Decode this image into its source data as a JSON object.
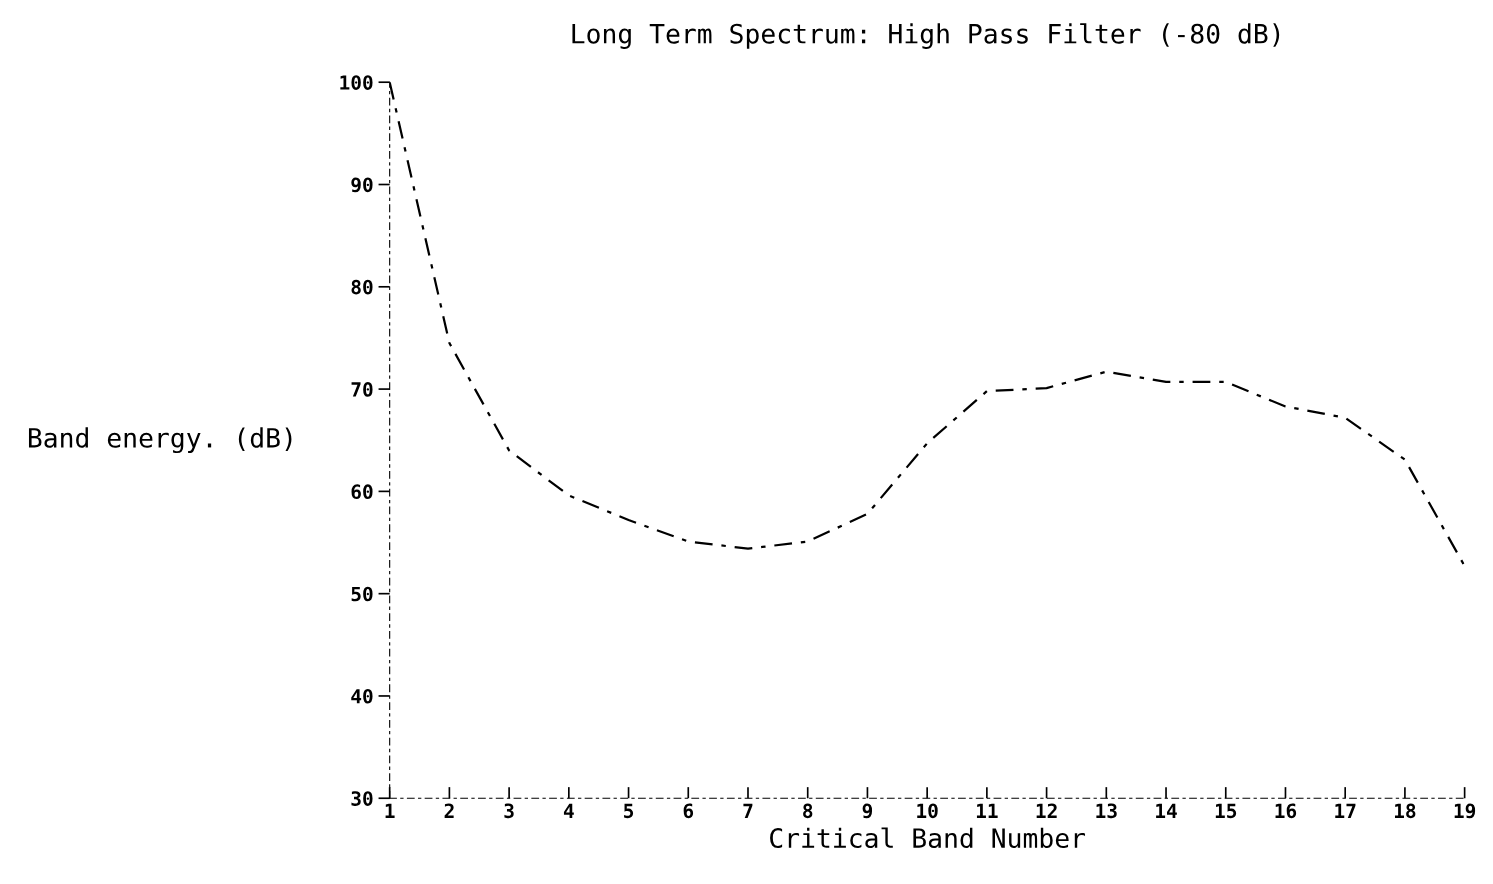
{
  "chart_data": {
    "type": "line",
    "title": "Long Term Spectrum: High Pass Filter (-80 dB)",
    "xlabel": "Critical Band Number",
    "ylabel": "Band energy. (dB)",
    "x": [
      1,
      2,
      3,
      4,
      5,
      6,
      7,
      8,
      9,
      10,
      11,
      12,
      13,
      14,
      15,
      16,
      17,
      18,
      19
    ],
    "series": [
      {
        "color": "#000000",
        "values": [
          100,
          74.5,
          64,
          59.6,
          57.2,
          55.1,
          54.4,
          55.1,
          57.8,
          64.7,
          69.8,
          70.1,
          71.7,
          70.7,
          70.7,
          68.3,
          67.2,
          63.1,
          52.7
        ]
      }
    ],
    "xlim": [
      1,
      19
    ],
    "xticks": [
      1,
      2,
      3,
      4,
      5,
      6,
      7,
      8,
      9,
      10,
      11,
      12,
      13,
      14,
      15,
      16,
      17,
      18,
      19
    ],
    "ylim": [
      30,
      100
    ],
    "yticks": [
      30,
      40,
      50,
      60,
      70,
      80,
      90,
      100
    ],
    "line_style": "dashed",
    "marker": "none",
    "grid": false,
    "legend": false
  }
}
